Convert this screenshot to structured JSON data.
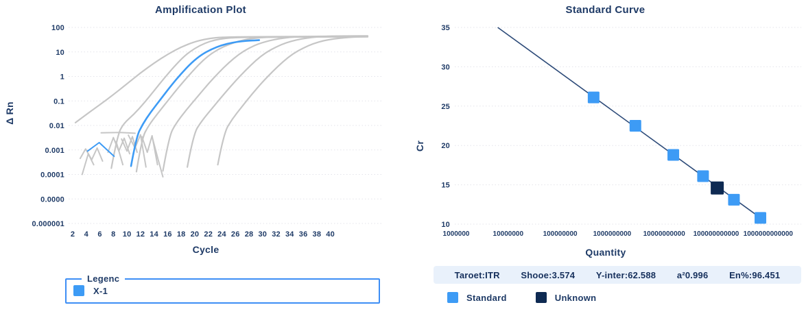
{
  "colors": {
    "text_navy": "#1e3a66",
    "accent_blue": "#3d9bf5",
    "dark_navy": "#0e2a52",
    "gray_curve": "#c6c6c6",
    "grid": "#e3e3ea",
    "trend_line": "#2c4a78",
    "stats_bar_bg": "#e9f1fb",
    "legend_border": "#3d8ef5"
  },
  "chart_data": [
    {
      "type": "line",
      "title": "Amplification Plot",
      "xlabel": "Cycle",
      "ylabel": "Δ Rn",
      "legend_title": "Legenc",
      "y_scale": "log",
      "ylim_log": [
        2,
        -6
      ],
      "xlim": [
        1.5,
        47.5
      ],
      "grid": true,
      "x_ticks": [
        2,
        4,
        6,
        8,
        10,
        12,
        14,
        16,
        18,
        20,
        22,
        24,
        26,
        28,
        30,
        32,
        34,
        36,
        38,
        40
      ],
      "y_tick_labels": [
        "100",
        "10",
        "1",
        "0.1",
        "0.01",
        "0.001",
        "0.0001",
        "0.0000",
        "0.000001"
      ],
      "series": [
        {
          "role": "background",
          "points": [
            [
              2.4,
              0.013
            ],
            [
              4,
              0.028
            ],
            [
              6,
              0.07
            ],
            [
              8,
              0.18
            ],
            [
              10,
              0.5
            ],
            [
              12,
              1.4
            ],
            [
              14,
              3.5
            ],
            [
              16,
              8
            ],
            [
              18,
              16
            ],
            [
              20,
              26
            ],
            [
              21.5,
              33
            ],
            [
              23,
              38
            ],
            [
              25,
              40.5
            ],
            [
              28,
              41.5
            ],
            [
              32,
              42
            ],
            [
              36,
              42.5
            ],
            [
              40,
              43
            ],
            [
              43,
              43.2
            ],
            [
              45.5,
              43.3
            ]
          ]
        },
        {
          "role": "background",
          "points": [
            [
              7.7,
              0.00018
            ],
            [
              8.6,
              0.004
            ],
            [
              9.5,
              0.012
            ],
            [
              11,
              0.028
            ],
            [
              12.5,
              0.08
            ],
            [
              14,
              0.26
            ],
            [
              15.5,
              0.85
            ],
            [
              17,
              2.6
            ],
            [
              18.5,
              7
            ],
            [
              20,
              14
            ],
            [
              21.5,
              23
            ],
            [
              23,
              31
            ],
            [
              24.5,
              36
            ],
            [
              26,
              38.5
            ],
            [
              28,
              39.5
            ],
            [
              31,
              40.2
            ],
            [
              34,
              40.6
            ],
            [
              37,
              40.8
            ],
            [
              40,
              41
            ],
            [
              43,
              41.2
            ],
            [
              45.5,
              41.3
            ]
          ]
        },
        {
          "role": "background",
          "points": [
            [
              11.4,
              0.00013
            ],
            [
              12.2,
              0.003
            ],
            [
              13.2,
              0.01
            ],
            [
              14.5,
              0.03
            ],
            [
              16,
              0.1
            ],
            [
              17.5,
              0.33
            ],
            [
              19,
              1
            ],
            [
              20.5,
              2.9
            ],
            [
              22,
              7
            ],
            [
              23.5,
              13
            ],
            [
              25,
              20
            ],
            [
              26.5,
              28
            ],
            [
              28,
              34
            ],
            [
              29.5,
              38
            ],
            [
              31,
              40
            ],
            [
              33,
              41
            ],
            [
              36,
              41.5
            ],
            [
              40,
              42
            ],
            [
              43,
              42.3
            ],
            [
              45.5,
              42.5
            ]
          ]
        },
        {
          "role": "background",
          "points": [
            [
              15.3,
              0.00014
            ],
            [
              16.2,
              0.0035
            ],
            [
              17.2,
              0.012
            ],
            [
              18.8,
              0.045
            ],
            [
              20.5,
              0.16
            ],
            [
              22,
              0.5
            ],
            [
              23.5,
              1.4
            ],
            [
              25,
              3.6
            ],
            [
              26.5,
              8
            ],
            [
              28,
              14.5
            ],
            [
              29.5,
              22
            ],
            [
              31,
              29
            ],
            [
              32.5,
              35
            ],
            [
              34,
              39.5
            ],
            [
              35.5,
              42
            ],
            [
              37.5,
              43
            ],
            [
              40,
              43.5
            ],
            [
              43,
              43.8
            ],
            [
              45.5,
              44
            ]
          ]
        },
        {
          "role": "background",
          "points": [
            [
              18.9,
              0.0002
            ],
            [
              19.8,
              0.0045
            ],
            [
              21,
              0.015
            ],
            [
              22.8,
              0.06
            ],
            [
              24.5,
              0.22
            ],
            [
              26,
              0.65
            ],
            [
              27.5,
              1.8
            ],
            [
              29,
              4.5
            ],
            [
              30.5,
              9.5
            ],
            [
              32,
              16
            ],
            [
              33.5,
              24
            ],
            [
              35,
              31
            ],
            [
              36.5,
              37
            ],
            [
              38,
              41
            ],
            [
              39.5,
              43.5
            ],
            [
              41,
              44.5
            ],
            [
              43,
              45
            ],
            [
              45.5,
              45
            ]
          ]
        },
        {
          "role": "background",
          "points": [
            [
              23.4,
              0.00025
            ],
            [
              24.3,
              0.005
            ],
            [
              25.5,
              0.018
            ],
            [
              27,
              0.06
            ],
            [
              28.5,
              0.2
            ],
            [
              30,
              0.6
            ],
            [
              31.5,
              1.6
            ],
            [
              33,
              4
            ],
            [
              34.5,
              8.5
            ],
            [
              36,
              14.5
            ],
            [
              37.5,
              22
            ],
            [
              39,
              29
            ],
            [
              40.5,
              34
            ],
            [
              42,
              38
            ],
            [
              43.5,
              40.5
            ],
            [
              45.5,
              42
            ]
          ]
        },
        {
          "role": "noise",
          "points": [
            [
              3.1,
              0.00045
            ],
            [
              3.9,
              0.0011
            ],
            [
              4.8,
              0.0004
            ],
            [
              5.6,
              0.0012
            ],
            [
              6.4,
              0.00035
            ]
          ]
        },
        {
          "role": "noise",
          "points": [
            [
              3.4,
              0.0001
            ],
            [
              4.3,
              0.0007
            ],
            [
              5.1,
              0.00025
            ]
          ]
        },
        {
          "role": "noise",
          "points": [
            [
              6.2,
              0.005
            ],
            [
              9,
              0.0052
            ],
            [
              11.2,
              0.0048
            ]
          ]
        },
        {
          "role": "noise",
          "points": [
            [
              7.2,
              0.0008
            ],
            [
              8,
              0.0032
            ],
            [
              8.8,
              0.0009
            ],
            [
              9.6,
              0.003
            ],
            [
              10.4,
              0.0007
            ]
          ]
        },
        {
          "role": "noise",
          "points": [
            [
              9.2,
              0.0028
            ],
            [
              10,
              0.0009
            ],
            [
              10.8,
              0.0035
            ],
            [
              11.5,
              0.0008
            ]
          ]
        },
        {
          "role": "noise",
          "points": [
            [
              10.2,
              0.004
            ],
            [
              11.2,
              0.0012
            ],
            [
              12,
              0.0042
            ],
            [
              12.8,
              0.0002
            ]
          ]
        },
        {
          "role": "noise",
          "points": [
            [
              12.2,
              0.0035
            ],
            [
              13,
              0.0008
            ],
            [
              13.7,
              0.0038
            ],
            [
              14.5,
              0.00025
            ]
          ]
        },
        {
          "role": "noise",
          "points": [
            [
              13.8,
              0.0028
            ],
            [
              14.6,
              0.0004
            ],
            [
              15.3,
              8e-05
            ]
          ]
        },
        {
          "role": "noise",
          "points": [
            [
              8.4,
              0.0022
            ],
            [
              9.4,
              0.00025
            ]
          ]
        },
        {
          "role": "highlight-noise",
          "points": [
            [
              4.2,
              0.0009
            ],
            [
              5.9,
              0.002
            ],
            [
              8.1,
              0.00055
            ]
          ]
        },
        {
          "role": "highlight",
          "label": "X-1",
          "points": [
            [
              10.6,
              0.00022
            ],
            [
              11.4,
              0.0035
            ],
            [
              12.3,
              0.011
            ],
            [
              13.5,
              0.035
            ],
            [
              15,
              0.12
            ],
            [
              16.5,
              0.42
            ],
            [
              18,
              1.3
            ],
            [
              19.5,
              3.6
            ],
            [
              21,
              7.8
            ],
            [
              22.5,
              13
            ],
            [
              24,
              19
            ],
            [
              25.5,
              24
            ],
            [
              27,
              27.5
            ],
            [
              28.3,
              29.2
            ],
            [
              29.5,
              30.2
            ]
          ]
        }
      ]
    },
    {
      "type": "scatter",
      "title": "Standard Curve",
      "xlabel": "Quantity",
      "ylabel": "Cr",
      "x_scale": "log",
      "grid": true,
      "x_tick_labels": [
        "1000000",
        "10000000",
        "100000000",
        "1000000000",
        "10000000000",
        "100000000000",
        "1000000000000"
      ],
      "x_tick_decades": [
        6,
        7,
        8,
        9,
        10,
        11,
        12
      ],
      "xlim_decades": [
        5.95,
        12.6
      ],
      "y_ticks": [
        35,
        30,
        25,
        20,
        15,
        10
      ],
      "ylim": [
        10,
        35
      ],
      "trendline": {
        "from": [
          6300000,
          35
        ],
        "to": [
          710000000000,
          10.8
        ]
      },
      "series": [
        {
          "label": "Standard",
          "marker": "square",
          "points": [
            [
              440000000,
              26.1
            ],
            [
              2800000000,
              22.5
            ],
            [
              15000000000,
              18.8
            ],
            [
              56000000000,
              16.1
            ],
            [
              220000000000,
              13.1
            ],
            [
              710000000000,
              10.8
            ]
          ]
        },
        {
          "label": "Unknown",
          "marker": "square",
          "points": [
            [
              105000000000,
              14.6
            ]
          ]
        }
      ],
      "stats": [
        "Taroet:ITR",
        "Shooe:3.574",
        "Y-inter:62.588",
        "a²0.996",
        "En%:96.451"
      ]
    }
  ]
}
